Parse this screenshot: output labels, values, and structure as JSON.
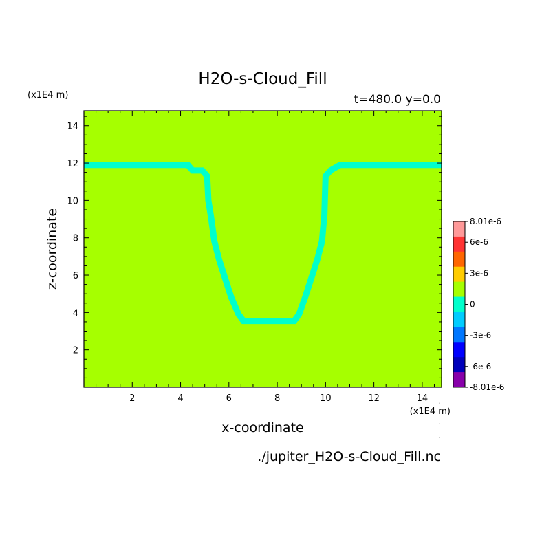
{
  "chart_data": {
    "type": "heatmap",
    "title": "H2O-s-Cloud_Fill",
    "subtitle": "t=480.0 y=0.0",
    "xlabel": "x-coordinate",
    "ylabel": "z-coordinate",
    "x_unit": "(x1E4 m)",
    "y_unit": "(x1E4 m)",
    "xlim": [
      0,
      14.8
    ],
    "ylim": [
      0,
      14.8
    ],
    "x_ticks": [
      2,
      4,
      6,
      8,
      10,
      12,
      14
    ],
    "y_ticks": [
      2,
      4,
      6,
      8,
      10,
      12,
      14
    ],
    "background_value": 0,
    "background_color": "#a6ff00",
    "contour_color": "#00ffcc",
    "contour": {
      "x": [
        0,
        4.3,
        4.5,
        4.9,
        5.1,
        5.15,
        5.25,
        5.4,
        5.6,
        5.85,
        6.1,
        6.4,
        6.6,
        8.7,
        8.9,
        9.15,
        9.4,
        9.65,
        9.85,
        9.95,
        10.0,
        10.2,
        10.6,
        14.8
      ],
      "y": [
        11.9,
        11.9,
        11.6,
        11.6,
        11.3,
        10.0,
        9.2,
        7.8,
        6.8,
        5.8,
        4.8,
        3.9,
        3.55,
        3.55,
        3.9,
        4.8,
        5.8,
        6.8,
        7.8,
        9.2,
        11.3,
        11.6,
        11.9,
        11.9
      ]
    },
    "colorbar": {
      "labels": [
        "8.01e-6",
        "6e-6",
        "3e-6",
        "0",
        "-3e-6",
        "-6e-6",
        "-8.01e-6"
      ],
      "label_values": [
        8.01e-06,
        6e-06,
        3e-06,
        0,
        -3e-06,
        -6e-06,
        -8.01e-06
      ],
      "min": -8.01e-06,
      "max": 8.01e-06,
      "colors": [
        "#ff9999",
        "#ff3333",
        "#ff6600",
        "#ffcc00",
        "#a6ff00",
        "#00ffcc",
        "#00ccff",
        "#0077ff",
        "#0000ff",
        "#0000bb",
        "#8800aa"
      ]
    },
    "filename": "./jupiter_H2O-s-Cloud_Fill.nc"
  }
}
